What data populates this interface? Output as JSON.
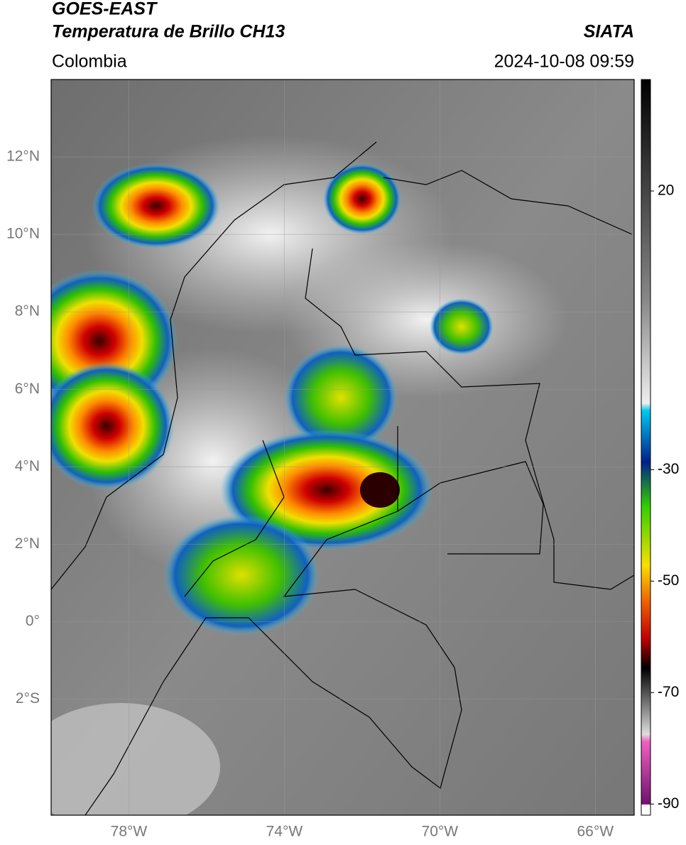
{
  "header": {
    "satellite": "GOES-EAST",
    "product": "Temperatura de Brillo CH13",
    "source": "SIATA",
    "region": "Colombia",
    "timestamp": "2024-10-08 09:59"
  },
  "map": {
    "xlim": [
      -80,
      -65
    ],
    "ylim": [
      -5,
      14
    ],
    "yticks": [
      {
        "value": 12,
        "label": "12°N"
      },
      {
        "value": 10,
        "label": "10°N"
      },
      {
        "value": 8,
        "label": "8°N"
      },
      {
        "value": 6,
        "label": "6°N"
      },
      {
        "value": 4,
        "label": "4°N"
      },
      {
        "value": 2,
        "label": "2°N"
      },
      {
        "value": 0,
        "label": "0°"
      },
      {
        "value": -2,
        "label": "2°S"
      }
    ],
    "xticks": [
      {
        "value": -78,
        "label": "78°W"
      },
      {
        "value": -74,
        "label": "74°W"
      },
      {
        "value": -70,
        "label": "70°W"
      },
      {
        "value": -66,
        "label": "66°W"
      }
    ],
    "grid": true
  },
  "colorbar": {
    "lim": [
      -92,
      40
    ],
    "ticks": [
      20,
      -30,
      -50,
      -70,
      -90
    ]
  }
}
